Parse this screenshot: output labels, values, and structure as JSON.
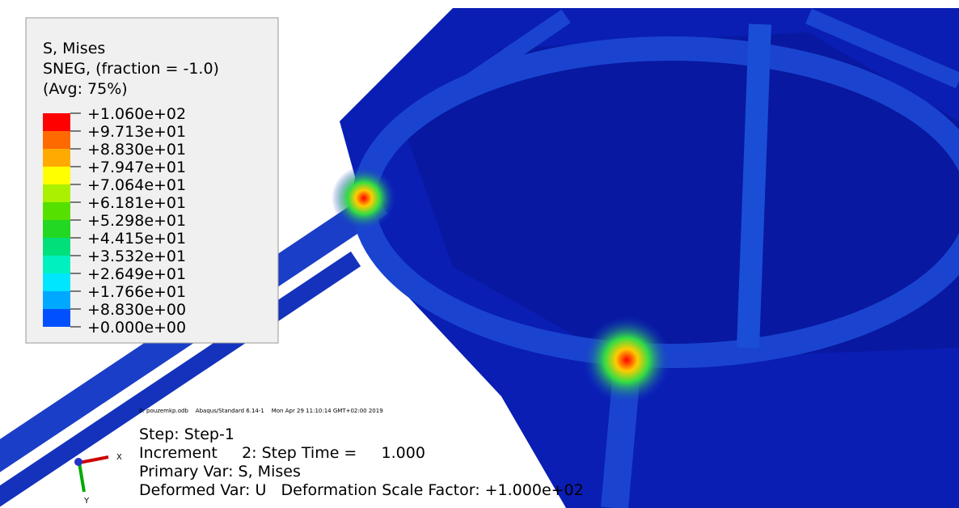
{
  "legend": {
    "title_lines": [
      "S, Mises",
      "SNEG, (fraction = -1.0)",
      "(Avg: 75%)"
    ],
    "labels": [
      "+1.060e+02",
      "+9.713e+01",
      "+8.830e+01",
      "+7.947e+01",
      "+7.064e+01",
      "+6.181e+01",
      "+5.298e+01",
      "+4.415e+01",
      "+3.532e+01",
      "+2.649e+01",
      "+1.766e+01",
      "+8.830e+00",
      "+0.000e+00"
    ],
    "colors": [
      "#ff0000",
      "#ff6a00",
      "#ffaa00",
      "#ffff00",
      "#aaf000",
      "#55e000",
      "#22d822",
      "#00e07a",
      "#00f0c0",
      "#00e6ff",
      "#00a8ff",
      "#0050ff"
    ]
  },
  "status_line": "0: pouzemkp.odb    Abaqus/Standard 6.14-1    Mon Apr 29 11:10:14 GMT+02:00 2019",
  "info_lines": [
    "Step: Step-1",
    "Increment     2: Step Time =     1.000",
    "Primary Var: S, Mises",
    "Deformed Var: U   Deformation Scale Factor: +1.000e+02"
  ],
  "triad": {
    "x": "X",
    "y": "Y"
  }
}
